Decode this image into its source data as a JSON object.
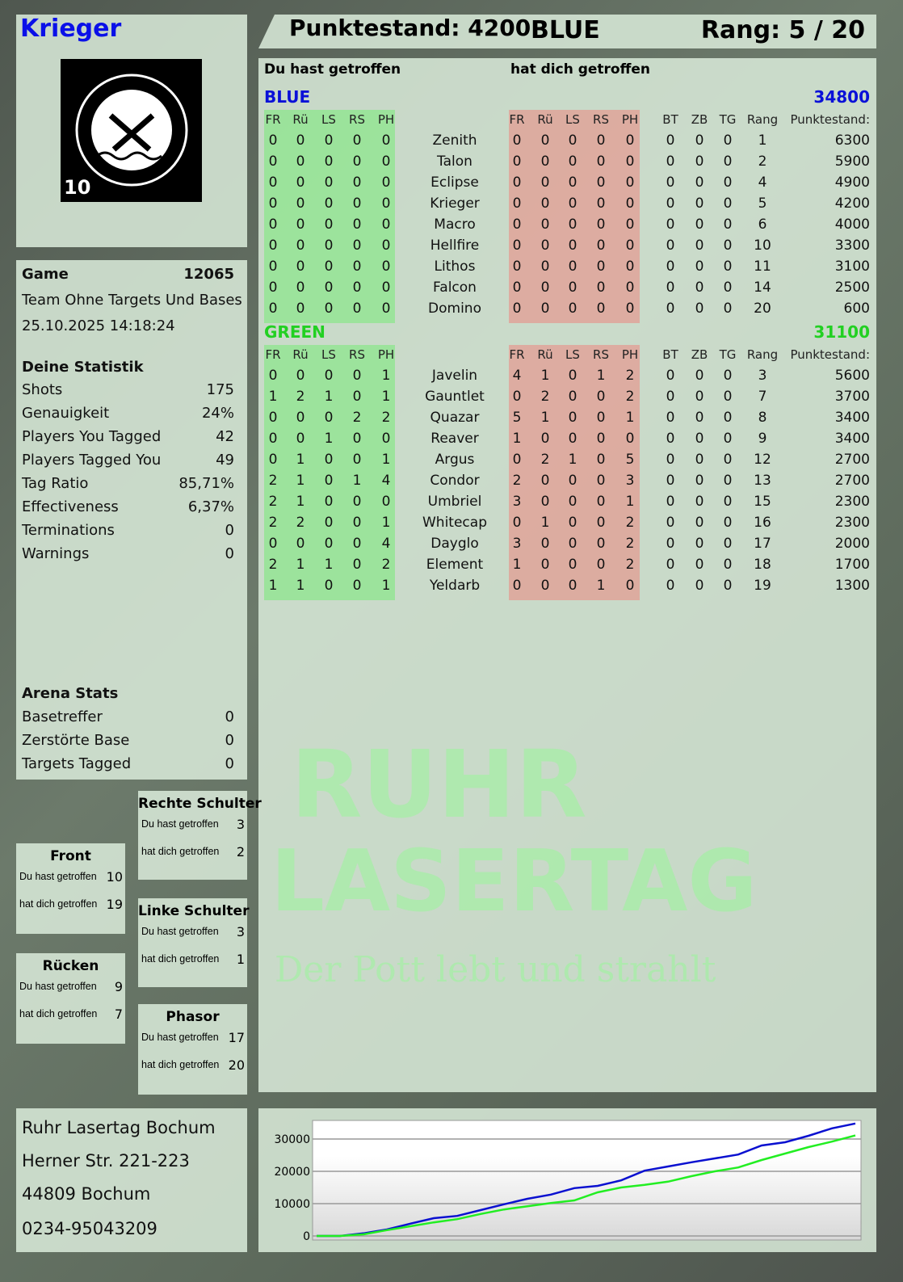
{
  "player": {
    "name": "Krieger",
    "logo_text": "RUHR LASERTAG",
    "logo_number": "10"
  },
  "header": {
    "score": "Punktestand: 4200",
    "team": "BLUE",
    "rank": "Rang: 5 / 20"
  },
  "table": {
    "you_hit": "Du hast getroffen",
    "hit_you": "hat dich getroffen",
    "cols_hit": [
      "FR",
      "Rü",
      "LS",
      "RS",
      "PH"
    ],
    "cols_extra": [
      "BT",
      "ZB",
      "TG",
      "Rang",
      "Punktestand:"
    ],
    "teams": [
      {
        "name": "BLUE",
        "total": "34800",
        "color": "#0a10d8",
        "rows": [
          {
            "you": [
              0,
              0,
              0,
              0,
              0
            ],
            "name": "Zenith",
            "them": [
              0,
              0,
              0,
              0,
              0
            ],
            "extra": [
              0,
              0,
              0,
              1,
              6300
            ]
          },
          {
            "you": [
              0,
              0,
              0,
              0,
              0
            ],
            "name": "Talon",
            "them": [
              0,
              0,
              0,
              0,
              0
            ],
            "extra": [
              0,
              0,
              0,
              2,
              5900
            ]
          },
          {
            "you": [
              0,
              0,
              0,
              0,
              0
            ],
            "name": "Eclipse",
            "them": [
              0,
              0,
              0,
              0,
              0
            ],
            "extra": [
              0,
              0,
              0,
              4,
              4900
            ]
          },
          {
            "you": [
              0,
              0,
              0,
              0,
              0
            ],
            "name": "Krieger",
            "them": [
              0,
              0,
              0,
              0,
              0
            ],
            "extra": [
              0,
              0,
              0,
              5,
              4200
            ]
          },
          {
            "you": [
              0,
              0,
              0,
              0,
              0
            ],
            "name": "Macro",
            "them": [
              0,
              0,
              0,
              0,
              0
            ],
            "extra": [
              0,
              0,
              0,
              6,
              4000
            ]
          },
          {
            "you": [
              0,
              0,
              0,
              0,
              0
            ],
            "name": "Hellfire",
            "them": [
              0,
              0,
              0,
              0,
              0
            ],
            "extra": [
              0,
              0,
              0,
              10,
              3300
            ]
          },
          {
            "you": [
              0,
              0,
              0,
              0,
              0
            ],
            "name": "Lithos",
            "them": [
              0,
              0,
              0,
              0,
              0
            ],
            "extra": [
              0,
              0,
              0,
              11,
              3100
            ]
          },
          {
            "you": [
              0,
              0,
              0,
              0,
              0
            ],
            "name": "Falcon",
            "them": [
              0,
              0,
              0,
              0,
              0
            ],
            "extra": [
              0,
              0,
              0,
              14,
              2500
            ]
          },
          {
            "you": [
              0,
              0,
              0,
              0,
              0
            ],
            "name": "Domino",
            "them": [
              0,
              0,
              0,
              0,
              0
            ],
            "extra": [
              0,
              0,
              0,
              20,
              600
            ]
          }
        ]
      },
      {
        "name": "GREEN",
        "total": "31100",
        "color": "#22d022",
        "rows": [
          {
            "you": [
              0,
              0,
              0,
              0,
              1
            ],
            "name": "Javelin",
            "them": [
              4,
              1,
              0,
              1,
              2
            ],
            "extra": [
              0,
              0,
              0,
              3,
              5600
            ]
          },
          {
            "you": [
              1,
              2,
              1,
              0,
              1
            ],
            "name": "Gauntlet",
            "them": [
              0,
              2,
              0,
              0,
              2
            ],
            "extra": [
              0,
              0,
              0,
              7,
              3700
            ]
          },
          {
            "you": [
              0,
              0,
              0,
              2,
              2
            ],
            "name": "Quazar",
            "them": [
              5,
              1,
              0,
              0,
              1
            ],
            "extra": [
              0,
              0,
              0,
              8,
              3400
            ]
          },
          {
            "you": [
              0,
              0,
              1,
              0,
              0
            ],
            "name": "Reaver",
            "them": [
              1,
              0,
              0,
              0,
              0
            ],
            "extra": [
              0,
              0,
              0,
              9,
              3400
            ]
          },
          {
            "you": [
              0,
              1,
              0,
              0,
              1
            ],
            "name": "Argus",
            "them": [
              0,
              2,
              1,
              0,
              5
            ],
            "extra": [
              0,
              0,
              0,
              12,
              2700
            ]
          },
          {
            "you": [
              2,
              1,
              0,
              1,
              4
            ],
            "name": "Condor",
            "them": [
              2,
              0,
              0,
              0,
              3
            ],
            "extra": [
              0,
              0,
              0,
              13,
              2700
            ]
          },
          {
            "you": [
              2,
              1,
              0,
              0,
              0
            ],
            "name": "Umbriel",
            "them": [
              3,
              0,
              0,
              0,
              1
            ],
            "extra": [
              0,
              0,
              0,
              15,
              2300
            ]
          },
          {
            "you": [
              2,
              2,
              0,
              0,
              1
            ],
            "name": "Whitecap",
            "them": [
              0,
              1,
              0,
              0,
              2
            ],
            "extra": [
              0,
              0,
              0,
              16,
              2300
            ]
          },
          {
            "you": [
              0,
              0,
              0,
              0,
              4
            ],
            "name": "Dayglo",
            "them": [
              3,
              0,
              0,
              0,
              2
            ],
            "extra": [
              0,
              0,
              0,
              17,
              2000
            ]
          },
          {
            "you": [
              2,
              1,
              1,
              0,
              2
            ],
            "name": "Element",
            "them": [
              1,
              0,
              0,
              0,
              2
            ],
            "extra": [
              0,
              0,
              0,
              18,
              1700
            ]
          },
          {
            "you": [
              1,
              1,
              0,
              0,
              1
            ],
            "name": "Yeldarb",
            "them": [
              0,
              0,
              0,
              1,
              0
            ],
            "extra": [
              0,
              0,
              0,
              19,
              1300
            ]
          }
        ]
      }
    ]
  },
  "game": {
    "label": "Game",
    "id": "12065",
    "mode": "Team Ohne Targets Und Bases",
    "datetime": "25.10.2025 14:18:24"
  },
  "stats": {
    "title": "Deine Statistik",
    "items": [
      {
        "label": "Shots",
        "value": "175"
      },
      {
        "label": "Genauigkeit",
        "value": "24%"
      },
      {
        "label": "Players You Tagged",
        "value": "42"
      },
      {
        "label": "Players Tagged You",
        "value": "49"
      },
      {
        "label": "Tag Ratio",
        "value": "85,71%"
      },
      {
        "label": "Effectiveness",
        "value": "6,37%"
      },
      {
        "label": "Terminations",
        "value": "0"
      },
      {
        "label": "Warnings",
        "value": "0"
      }
    ]
  },
  "arena": {
    "title": "Arena Stats",
    "items": [
      {
        "label": "Basetreffer",
        "value": "0"
      },
      {
        "label": "Zerstörte Base",
        "value": "0"
      },
      {
        "label": "Targets Tagged",
        "value": "0"
      }
    ]
  },
  "hits": [
    {
      "title": "Rechte Schulter",
      "you_label": "Du hast getroffen",
      "you": "3",
      "them_label": "hat dich getroffen",
      "them": "2"
    },
    {
      "title": "Front",
      "you_label": "Du hast getroffen",
      "you": "10",
      "them_label": "hat dich getroffen",
      "them": "19"
    },
    {
      "title": "Linke Schulter",
      "you_label": "Du hast getroffen",
      "you": "3",
      "them_label": "hat dich getroffen",
      "them": "1"
    },
    {
      "title": "Rücken",
      "you_label": "Du hast getroffen",
      "you": "9",
      "them_label": "hat dich getroffen",
      "them": "7"
    },
    {
      "title": "Phasor",
      "you_label": "Du hast getroffen",
      "you": "17",
      "them_label": "hat dich getroffen",
      "them": "20"
    }
  ],
  "address": {
    "name": "Ruhr Lasertag Bochum",
    "street": "Herner Str. 221-223",
    "city": "44809 Bochum",
    "phone": "0234-95043209"
  },
  "watermark": {
    "line1": "RUHR",
    "line2": "LASERTAG",
    "slogan": "Der Pott lebt und strahlt"
  },
  "chart_data": {
    "type": "line",
    "ylim": [
      0,
      35000
    ],
    "yticks": [
      "0",
      "10000",
      "20000",
      "30000"
    ],
    "grid": true,
    "series": [
      {
        "color": "#0a10d0",
        "values": [
          0,
          0,
          800,
          2000,
          3800,
          5500,
          6200,
          8000,
          9800,
          11500,
          12800,
          14800,
          15500,
          17200,
          20200,
          21500,
          22800,
          24000,
          25200,
          28000,
          29000,
          31000,
          33300,
          34800
        ]
      },
      {
        "color": "#22ee22",
        "values": [
          0,
          0,
          500,
          1800,
          3000,
          4200,
          5200,
          6800,
          8200,
          9200,
          10200,
          11000,
          13500,
          15000,
          15800,
          16800,
          18500,
          20000,
          21200,
          23500,
          25500,
          27500,
          29200,
          31100
        ]
      }
    ]
  }
}
